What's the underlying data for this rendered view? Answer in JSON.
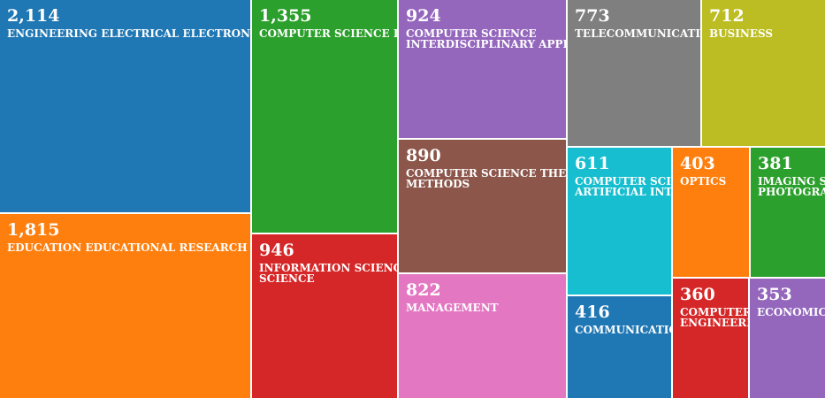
{
  "chart_data": {
    "type": "treemap",
    "value_format": "thousands-comma",
    "items": [
      {
        "label": "ENGINEERING ELECTRICAL ELECTRONIC",
        "display_label": "ENGINEERING ELECTRICAL ELECTRONIC",
        "value": 2114,
        "value_text": "2,114",
        "color": "#1f77b4"
      },
      {
        "label": "EDUCATION EDUCATIONAL RESEARCH",
        "display_label": "EDUCATION EDUCATIONAL RESEARCH",
        "value": 1815,
        "value_text": "1,815",
        "color": "#ff7f0e"
      },
      {
        "label": "COMPUTER SCIENCE INFORMATION SYSTEMS",
        "display_label": "COMPUTER SCIENCE INFORMATION SYSTEMS",
        "value": 1355,
        "value_text": "1,355",
        "color": "#2ca02c"
      },
      {
        "label": "INFORMATION SCIENCE LIBRARY SCIENCE",
        "display_label": "INFORMATION SCIENCE LIBRARY\nSCIENCE",
        "value": 946,
        "value_text": "946",
        "color": "#d62728"
      },
      {
        "label": "COMPUTER SCIENCE INTERDISCIPLINARY APPLICATIONS",
        "display_label": "COMPUTER SCIENCE\nINTERDISCIPLINARY APPLICATIONS",
        "value": 924,
        "value_text": "924",
        "color": "#9467bd"
      },
      {
        "label": "COMPUTER SCIENCE THEORY METHODS",
        "display_label": "COMPUTER SCIENCE THEORY\nMETHODS",
        "value": 890,
        "value_text": "890",
        "color": "#8c564b"
      },
      {
        "label": "MANAGEMENT",
        "display_label": "MANAGEMENT",
        "value": 822,
        "value_text": "822",
        "color": "#e377c2"
      },
      {
        "label": "TELECOMMUNICATIONS",
        "display_label": "TELECOMMUNICATIONS",
        "value": 773,
        "value_text": "773",
        "color": "#7f7f7f"
      },
      {
        "label": "BUSINESS",
        "display_label": "BUSINESS",
        "value": 712,
        "value_text": "712",
        "color": "#bcbd22"
      },
      {
        "label": "COMPUTER SCIENCE ARTIFICIAL INTELLIGENCE",
        "display_label": "COMPUTER SCIENCE\nARTIFICIAL INTELLIGENCE",
        "value": 611,
        "value_text": "611",
        "color": "#17becf"
      },
      {
        "label": "COMMUNICATION",
        "display_label": "COMMUNICATION",
        "value": 416,
        "value_text": "416",
        "color": "#1f77b4"
      },
      {
        "label": "OPTICS",
        "display_label": "OPTICS",
        "value": 403,
        "value_text": "403",
        "color": "#ff7f0e"
      },
      {
        "label": "IMAGING SCIENCE PHOTOGRAPHIC TECHNOLOGY",
        "display_label": "IMAGING SCIENCE\nPHOTOGRAPHIC TECHNOLOGY",
        "value": 381,
        "value_text": "381",
        "color": "#2ca02c"
      },
      {
        "label": "COMPUTER SCIENCE SOFTWARE ENGINEERING",
        "display_label": "COMPUTER SCIENCE SOFTWARE\nENGINEERING",
        "value": 360,
        "value_text": "360",
        "color": "#d62728"
      },
      {
        "label": "ECONOMICS",
        "display_label": "ECONOMICS",
        "value": 353,
        "value_text": "353",
        "color": "#9467bd"
      }
    ]
  }
}
